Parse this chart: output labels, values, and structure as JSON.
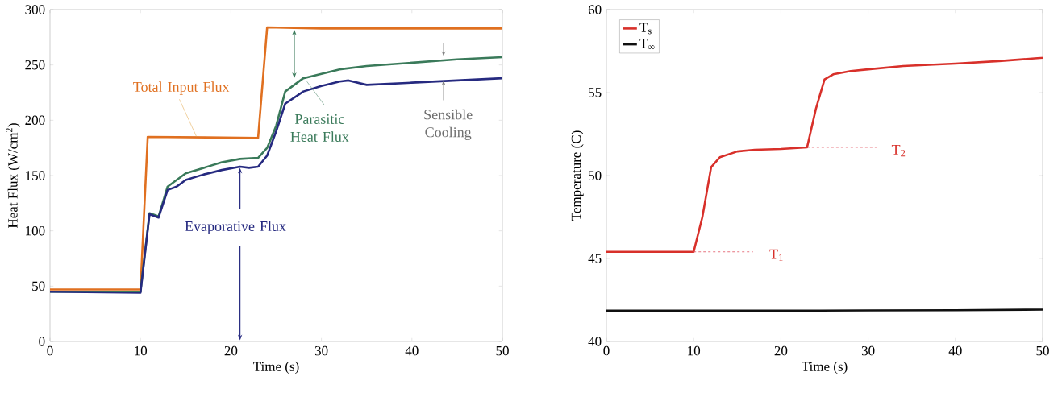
{
  "chart_data": [
    {
      "type": "line",
      "xlabel": "Time (s)",
      "ylabel": "Heat Flux (W/cm$^{2}$)",
      "xlim": [
        0,
        50
      ],
      "ylim": [
        0,
        300
      ],
      "xticks": [
        0,
        10,
        20,
        30,
        40,
        50
      ],
      "yticks": [
        0,
        50,
        100,
        150,
        200,
        250,
        300
      ],
      "grid": false,
      "legend": false,
      "series": [
        {
          "color": "#e07020",
          "x": [
            0,
            10,
            10.8,
            23,
            24,
            30,
            50
          ],
          "values": [
            47,
            47,
            185,
            184,
            284,
            283,
            283
          ]
        },
        {
          "color": "#3a7a5a",
          "x": [
            0,
            10,
            11,
            12,
            13,
            15,
            17,
            19,
            21,
            23,
            24,
            25,
            26,
            28,
            30,
            32,
            35,
            40,
            45,
            50
          ],
          "values": [
            45,
            45,
            116,
            113,
            140,
            152,
            157,
            162,
            165,
            166,
            175,
            195,
            226,
            238,
            242,
            246,
            249,
            252,
            255,
            257
          ]
        },
        {
          "color": "#262a80",
          "x": [
            0,
            10,
            11,
            12,
            13,
            14,
            15,
            17,
            19,
            21,
            22,
            23,
            24,
            25,
            26,
            28,
            30,
            32,
            33,
            35,
            40,
            45,
            50
          ],
          "values": [
            45,
            44,
            115,
            112,
            137,
            140,
            146,
            151,
            155,
            158,
            157,
            158,
            168,
            190,
            215,
            226,
            231,
            235,
            236,
            232,
            234,
            236,
            238
          ]
        }
      ],
      "annotations": [
        {
          "text": "Total Input Flux",
          "x": 16.2,
          "y": 185
        },
        "Parasitic Heat Flux",
        {
          "text": "Sensible Cooling",
          "x": 43.5,
          "y": 236
        },
        "Evaporative Flux"
      ]
    },
    {
      "type": "line",
      "xlabel": "Time (s)",
      "ylabel": "Temperature (C)",
      "xlim": [
        0,
        50
      ],
      "ylim": [
        40,
        60
      ],
      "xticks": [
        0,
        10,
        20,
        30,
        40,
        50
      ],
      "yticks": [
        40,
        45,
        50,
        55,
        60
      ],
      "grid": false,
      "legend": "top left",
      "series": [
        {
          "name": "T$_{s}$",
          "color": "#d8302a",
          "x": [
            0,
            5,
            10,
            11,
            12,
            13,
            15,
            17,
            20,
            23,
            24,
            25,
            26,
            28,
            30,
            34,
            40,
            45,
            50
          ],
          "values": [
            45.4,
            45.4,
            45.4,
            47.5,
            50.5,
            51.1,
            51.45,
            51.55,
            51.6,
            51.7,
            54,
            55.8,
            56.1,
            56.3,
            56.4,
            56.6,
            56.75,
            56.9,
            57.1
          ]
        },
        {
          "name": "T$_{∞}$",
          "color": "#101010",
          "x": [
            0,
            10,
            20,
            30,
            40,
            50
          ],
          "values": [
            41.85,
            41.85,
            41.85,
            41.87,
            41.88,
            41.92
          ]
        },
        {
          "color": "#e05060",
          "line_style": "dashed",
          "x": [
            10,
            16.8
          ],
          "values": [
            45.4,
            45.4
          ]
        },
        {
          "color": "#e05060",
          "line_style": "dashed",
          "x": [
            23,
            31
          ],
          "values": [
            51.7,
            51.7
          ]
        }
      ],
      "annotations": [
        "T$_{1}$",
        "T$_{2}$"
      ]
    }
  ]
}
